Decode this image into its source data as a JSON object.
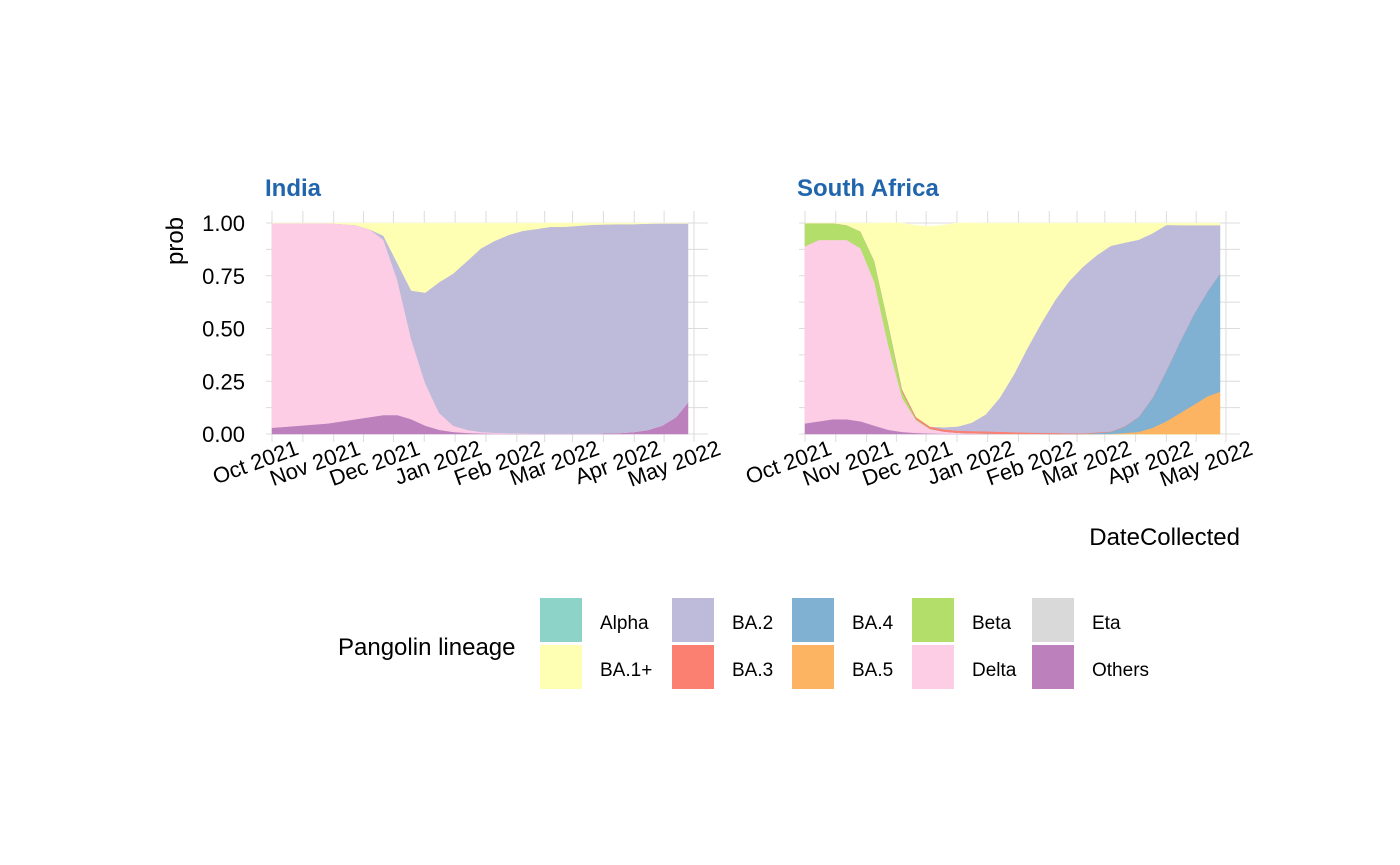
{
  "chart_data": {
    "type": "area",
    "stacked": true,
    "ylabel": "prob",
    "xlabel": "DateCollected",
    "ylim": [
      0,
      1
    ],
    "y_ticks": [
      "0.00",
      "0.25",
      "0.50",
      "0.75",
      "1.00"
    ],
    "x_ticks": [
      "Oct 2021",
      "Nov 2021",
      "Dec 2021",
      "Jan 2022",
      "Feb 2022",
      "Mar 2022",
      "Apr 2022",
      "May 2022"
    ],
    "x_tick_dates": [
      "2021-10-01",
      "2021-11-01",
      "2021-12-01",
      "2022-01-01",
      "2022-02-01",
      "2022-03-01",
      "2022-04-01",
      "2022-05-01"
    ],
    "xlim": [
      "2021-10-01",
      "2022-04-28"
    ],
    "legend": {
      "title": "Pangolin lineage",
      "position": "bottom",
      "entries": [
        {
          "name": "Alpha",
          "color": "#8dd3c7"
        },
        {
          "name": "BA.1+",
          "color": "#ffffb3"
        },
        {
          "name": "BA.2",
          "color": "#bebada"
        },
        {
          "name": "BA.3",
          "color": "#fb8072"
        },
        {
          "name": "BA.4",
          "color": "#80b1d3"
        },
        {
          "name": "BA.5",
          "color": "#fdb462"
        },
        {
          "name": "Beta",
          "color": "#b3de69"
        },
        {
          "name": "Delta",
          "color": "#fccde5"
        },
        {
          "name": "Eta",
          "color": "#d9d9d9"
        },
        {
          "name": "Others",
          "color": "#bc80bd"
        }
      ]
    },
    "stack_order_bottom_to_top": [
      "Others",
      "Eta",
      "Delta",
      "Beta",
      "BA.5",
      "BA.4",
      "BA.3",
      "BA.2",
      "BA.1+",
      "Alpha"
    ],
    "panels": [
      {
        "title": "India",
        "dates": [
          "2021-10-01",
          "2021-10-15",
          "2021-10-29",
          "2021-11-12",
          "2021-11-19",
          "2021-11-26",
          "2021-12-03",
          "2021-12-10",
          "2021-12-17",
          "2021-12-24",
          "2021-12-31",
          "2022-01-07",
          "2022-01-14",
          "2022-01-21",
          "2022-01-28",
          "2022-02-04",
          "2022-02-11",
          "2022-02-18",
          "2022-02-25",
          "2022-03-11",
          "2022-03-25",
          "2022-04-01",
          "2022-04-08",
          "2022-04-15",
          "2022-04-22",
          "2022-04-28"
        ],
        "series": [
          {
            "name": "Others",
            "values": [
              0.03,
              0.04,
              0.05,
              0.07,
              0.08,
              0.09,
              0.09,
              0.07,
              0.04,
              0.02,
              0.01,
              0.005,
              0.003,
              0.002,
              0.001,
              0.001,
              0.001,
              0.001,
              0.001,
              0.002,
              0.005,
              0.01,
              0.02,
              0.04,
              0.08,
              0.15
            ]
          },
          {
            "name": "Delta",
            "values": [
              0.97,
              0.96,
              0.95,
              0.92,
              0.89,
              0.83,
              0.64,
              0.38,
              0.2,
              0.08,
              0.03,
              0.015,
              0.007,
              0.004,
              0.003,
              0.002,
              0.001,
              0.001,
              0.001,
              0,
              0,
              0,
              0,
              0,
              0,
              0
            ]
          },
          {
            "name": "BA.2",
            "values": [
              0,
              0,
              0,
              0,
              0,
              0.02,
              0.08,
              0.23,
              0.43,
              0.62,
              0.72,
              0.8,
              0.87,
              0.91,
              0.94,
              0.96,
              0.97,
              0.98,
              0.98,
              0.99,
              0.99,
              0.985,
              0.977,
              0.958,
              0.918,
              0.848
            ]
          },
          {
            "name": "BA.1+",
            "values": [
              0,
              0,
              0,
              0.01,
              0.03,
              0.06,
              0.19,
              0.32,
              0.33,
              0.28,
              0.24,
              0.18,
              0.12,
              0.084,
              0.056,
              0.037,
              0.028,
              0.019,
              0.019,
              0.008,
              0.005,
              0.005,
              0.003,
              0.002,
              0.002,
              0.002
            ]
          }
        ]
      },
      {
        "title": "South Africa",
        "dates": [
          "2021-10-01",
          "2021-10-08",
          "2021-10-15",
          "2021-10-22",
          "2021-10-29",
          "2021-11-05",
          "2021-11-12",
          "2021-11-19",
          "2021-11-26",
          "2021-12-03",
          "2021-12-10",
          "2021-12-17",
          "2021-12-24",
          "2021-12-31",
          "2022-01-07",
          "2022-01-14",
          "2022-01-21",
          "2022-01-28",
          "2022-02-04",
          "2022-02-11",
          "2022-02-18",
          "2022-02-25",
          "2022-03-04",
          "2022-03-11",
          "2022-03-18",
          "2022-03-25",
          "2022-04-01",
          "2022-04-08",
          "2022-04-15",
          "2022-04-22",
          "2022-04-28"
        ],
        "series": [
          {
            "name": "Others",
            "values": [
              0.05,
              0.06,
              0.07,
              0.07,
              0.06,
              0.04,
              0.02,
              0.01,
              0.005,
              0.003,
              0.002,
              0.001,
              0.001,
              0.001,
              0,
              0,
              0,
              0,
              0,
              0,
              0,
              0,
              0,
              0,
              0,
              0,
              0,
              0,
              0,
              0,
              0
            ]
          },
          {
            "name": "Delta",
            "values": [
              0.84,
              0.86,
              0.85,
              0.85,
              0.82,
              0.68,
              0.4,
              0.16,
              0.06,
              0.02,
              0.01,
              0.005,
              0.003,
              0.002,
              0.001,
              0.001,
              0.001,
              0.001,
              0,
              0,
              0,
              0,
              0,
              0,
              0,
              0,
              0,
              0,
              0,
              0,
              0
            ]
          },
          {
            "name": "BA.5",
            "values": [
              0,
              0,
              0,
              0,
              0,
              0,
              0,
              0,
              0,
              0,
              0,
              0,
              0,
              0,
              0,
              0,
              0,
              0,
              0,
              0,
              0,
              0,
              0,
              0.005,
              0.01,
              0.03,
              0.06,
              0.1,
              0.14,
              0.18,
              0.2
            ]
          },
          {
            "name": "BA.4",
            "values": [
              0,
              0,
              0,
              0,
              0,
              0,
              0,
              0,
              0,
              0,
              0,
              0,
              0,
              0,
              0,
              0,
              0,
              0,
              0,
              0,
              0,
              0.005,
              0.01,
              0.03,
              0.07,
              0.14,
              0.24,
              0.34,
              0.43,
              0.5,
              0.56
            ]
          },
          {
            "name": "BA.3",
            "values": [
              0,
              0,
              0,
              0,
              0,
              0,
              0.002,
              0.01,
              0.01,
              0.01,
              0.01,
              0.01,
              0.01,
              0.01,
              0.01,
              0.008,
              0.006,
              0.005,
              0.005,
              0.004,
              0.003,
              0.003,
              0.002,
              0.002,
              0.001,
              0.001,
              0.001,
              0,
              0,
              0,
              0
            ]
          },
          {
            "name": "BA.2",
            "values": [
              0,
              0,
              0,
              0,
              0,
              0,
              0,
              0,
              0,
              0,
              0.01,
              0.02,
              0.04,
              0.08,
              0.16,
              0.27,
              0.4,
              0.52,
              0.63,
              0.72,
              0.79,
              0.84,
              0.88,
              0.87,
              0.84,
              0.78,
              0.69,
              0.55,
              0.42,
              0.31,
              0.23
            ]
          },
          {
            "name": "BA.1+",
            "values": [
              0,
              0,
              0,
              0.01,
              0.04,
              0.18,
              0.48,
              0.79,
              0.91,
              0.95,
              0.96,
              0.965,
              0.947,
              0.907,
              0.829,
              0.721,
              0.593,
              0.474,
              0.365,
              0.276,
              0.207,
              0.152,
              0.108,
              0.093,
              0.079,
              0.049,
              0.009,
              0.01,
              0.01,
              0.01,
              0.01
            ]
          },
          {
            "name": "Beta",
            "values": [
              0.11,
              0.08,
              0.08,
              0.07,
              0.08,
              0.1,
              0.1,
              0.03,
              0.005,
              0.002,
              0,
              0,
              0,
              0,
              0,
              0,
              0,
              0,
              0,
              0,
              0,
              0,
              0,
              0,
              0,
              0,
              0,
              0,
              0,
              0,
              0
            ]
          }
        ]
      }
    ]
  }
}
